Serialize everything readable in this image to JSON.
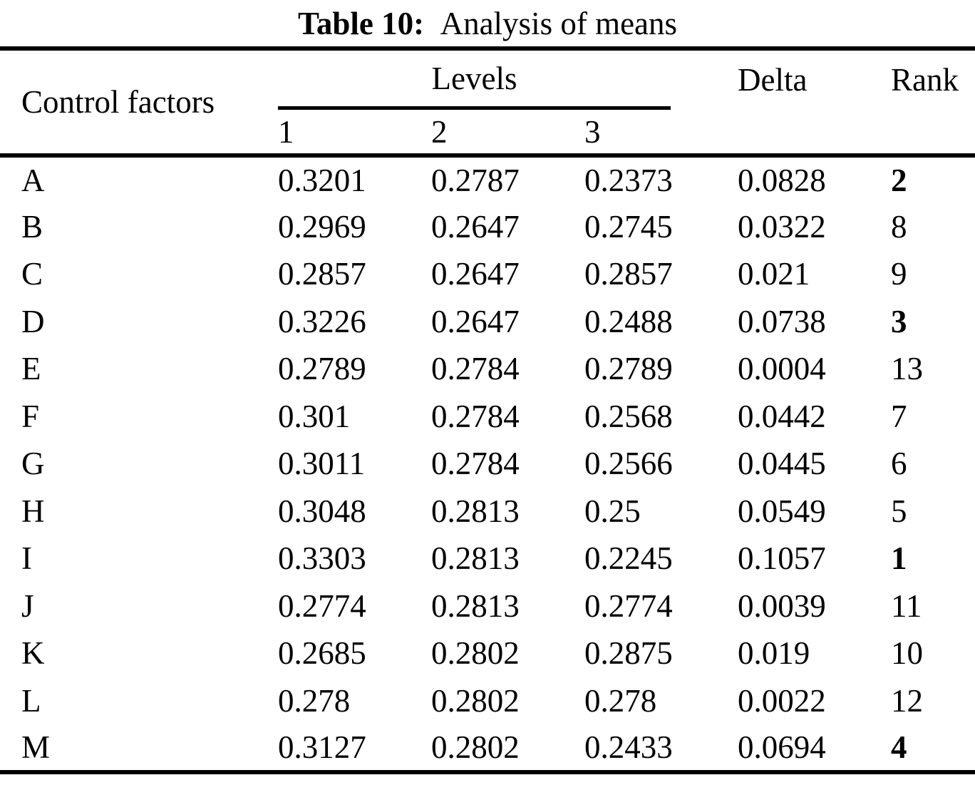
{
  "title": {
    "label": "Table 10:",
    "text": "Analysis of means"
  },
  "table": {
    "col_factor": "Control factors",
    "levels_group": "Levels",
    "level_cols": [
      "1",
      "2",
      "3"
    ],
    "col_delta": "Delta",
    "col_rank": "Rank",
    "rows": [
      {
        "factor": "A",
        "l1": "0.3201",
        "l2": "0.2787",
        "l3": "0.2373",
        "delta": "0.0828",
        "rank": "2",
        "rank_bold": true
      },
      {
        "factor": "B",
        "l1": "0.2969",
        "l2": "0.2647",
        "l3": "0.2745",
        "delta": "0.0322",
        "rank": "8",
        "rank_bold": false
      },
      {
        "factor": "C",
        "l1": "0.2857",
        "l2": "0.2647",
        "l3": "0.2857",
        "delta": "0.021",
        "rank": "9",
        "rank_bold": false
      },
      {
        "factor": "D",
        "l1": "0.3226",
        "l2": "0.2647",
        "l3": "0.2488",
        "delta": "0.0738",
        "rank": "3",
        "rank_bold": true
      },
      {
        "factor": "E",
        "l1": "0.2789",
        "l2": "0.2784",
        "l3": "0.2789",
        "delta": "0.0004",
        "rank": "13",
        "rank_bold": false
      },
      {
        "factor": "F",
        "l1": "0.301",
        "l2": "0.2784",
        "l3": "0.2568",
        "delta": "0.0442",
        "rank": "7",
        "rank_bold": false
      },
      {
        "factor": "G",
        "l1": "0.3011",
        "l2": "0.2784",
        "l3": "0.2566",
        "delta": "0.0445",
        "rank": "6",
        "rank_bold": false
      },
      {
        "factor": "H",
        "l1": "0.3048",
        "l2": "0.2813",
        "l3": "0.25",
        "delta": "0.0549",
        "rank": "5",
        "rank_bold": false
      },
      {
        "factor": "I",
        "l1": "0.3303",
        "l2": "0.2813",
        "l3": "0.2245",
        "delta": "0.1057",
        "rank": "1",
        "rank_bold": true
      },
      {
        "factor": "J",
        "l1": "0.2774",
        "l2": "0.2813",
        "l3": "0.2774",
        "delta": "0.0039",
        "rank": "11",
        "rank_bold": false
      },
      {
        "factor": "K",
        "l1": "0.2685",
        "l2": "0.2802",
        "l3": "0.2875",
        "delta": "0.019",
        "rank": "10",
        "rank_bold": false
      },
      {
        "factor": "L",
        "l1": "0.278",
        "l2": "0.2802",
        "l3": "0.278",
        "delta": "0.0022",
        "rank": "12",
        "rank_bold": false
      },
      {
        "factor": "M",
        "l1": "0.3127",
        "l2": "0.2802",
        "l3": "0.2433",
        "delta": "0.0694",
        "rank": "4",
        "rank_bold": true
      }
    ]
  },
  "colors": {
    "ink": "#000000",
    "paper": "#ffffff"
  }
}
